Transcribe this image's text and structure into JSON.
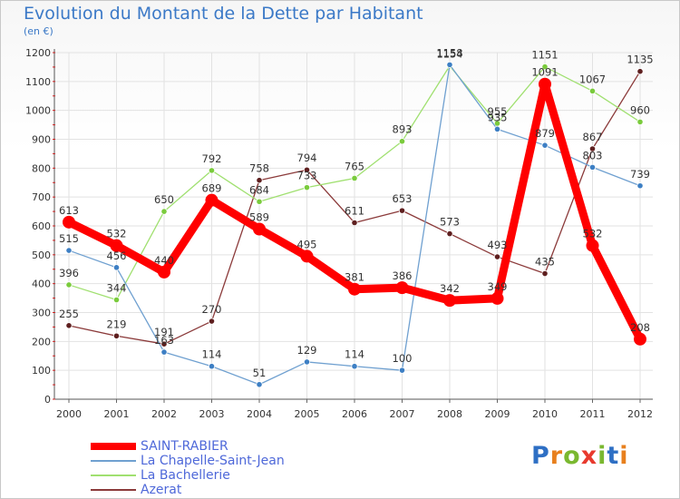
{
  "header": {
    "title": "Evolution du Montant de la Dette par Habitant",
    "subtitle": "(en €)"
  },
  "logo": {
    "text": "Proxiti",
    "letter_colors": [
      "#2e6fc4",
      "#e8801e",
      "#7ab830",
      "#e83a2e",
      "#7ab830",
      "#2e6fc4",
      "#e8801e"
    ]
  },
  "chart_data": {
    "type": "line",
    "title": "Evolution du Montant de la Dette par Habitant",
    "subtitle": "(en €)",
    "x": [
      "2000",
      "2001",
      "2002",
      "2003",
      "2004",
      "2005",
      "2006",
      "2007",
      "2008",
      "2009",
      "2010",
      "2011",
      "2012"
    ],
    "ylim": [
      0,
      1200
    ],
    "yticks": [
      0,
      100,
      200,
      300,
      400,
      500,
      600,
      700,
      800,
      900,
      1000,
      1100,
      1200
    ],
    "grid": true,
    "legend_position": "bottom-left",
    "series": [
      {
        "name": "SAINT-RABIER",
        "color": "#ff0000",
        "values": [
          613,
          532,
          440,
          689,
          589,
          495,
          381,
          386,
          342,
          349,
          1091,
          532,
          208
        ],
        "labels": [
          "613",
          "532",
          "440",
          "689",
          "589",
          "495",
          "381",
          "386",
          "342",
          "349",
          "1091",
          "532",
          "208"
        ]
      },
      {
        "name": "La Chapelle-Saint-Jean",
        "color": "#6fa0d0",
        "marker": "#3d7fc4",
        "values": [
          515,
          456,
          163,
          114,
          51,
          129,
          114,
          100,
          1158,
          935,
          879,
          803,
          739
        ],
        "labels": [
          "515",
          "456",
          "163",
          "114",
          "51",
          "129",
          "114",
          "100",
          "1158",
          "935",
          "879",
          "803",
          "739"
        ]
      },
      {
        "name": "La Bachellerie",
        "color": "#a0e070",
        "marker": "#7acb3c",
        "values": [
          396,
          344,
          650,
          792,
          684,
          733,
          765,
          893,
          1154,
          955,
          1151,
          1067,
          960
        ],
        "labels": [
          "396",
          "344",
          "650",
          "792",
          "684",
          "733",
          "765",
          "893",
          "1154",
          "955",
          "1151",
          "1067",
          "960"
        ]
      },
      {
        "name": "Azerat",
        "color": "#8b3a3a",
        "marker": "#5e1f1f",
        "values": [
          255,
          219,
          191,
          270,
          758,
          794,
          611,
          653,
          573,
          493,
          435,
          867,
          1135
        ],
        "labels": [
          "255",
          "219",
          "191",
          "270",
          "758",
          "794",
          "611",
          "653",
          "573",
          "493",
          "435",
          "867",
          "1135"
        ]
      }
    ]
  }
}
